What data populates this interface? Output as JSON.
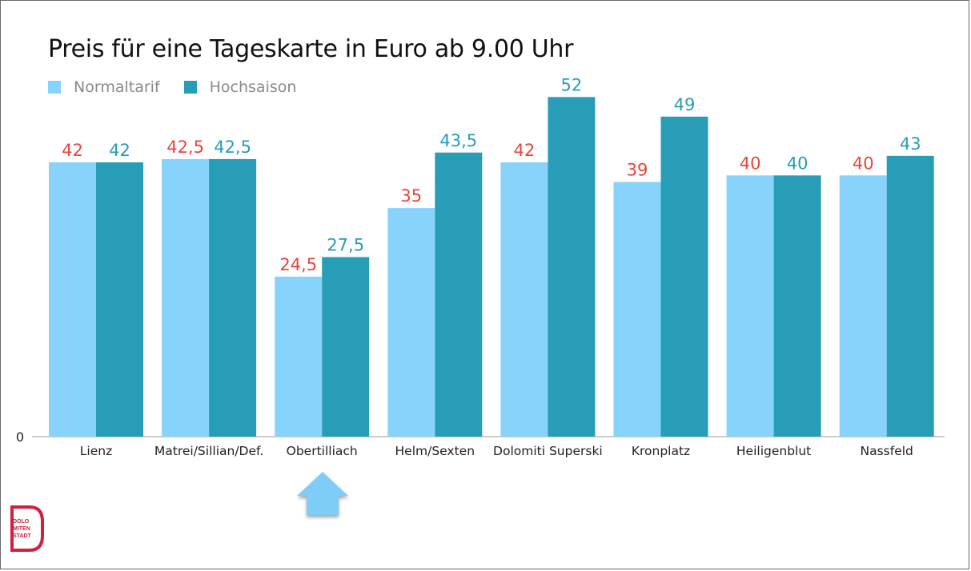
{
  "chart_data": {
    "type": "bar",
    "title": "Preis für eine Tageskarte in Euro ab 9.00 Uhr",
    "categories": [
      "Lienz",
      "Matrei/Sillian/Def.",
      "Obertilliach",
      "Helm/Sexten",
      "Dolomiti Superski",
      "Kronplatz",
      "Heiligenblut",
      "Nassfeld"
    ],
    "series": [
      {
        "name": "Normaltarif",
        "values": [
          42,
          42.5,
          24.5,
          35,
          42,
          39,
          40,
          40
        ],
        "labels": [
          "42",
          "42,5",
          "24,5",
          "35",
          "42",
          "39",
          "40",
          "40"
        ],
        "color": "#87d3fb",
        "label_color": "#e8453c"
      },
      {
        "name": "Hochsaison",
        "values": [
          42,
          42.5,
          27.5,
          43.5,
          52,
          49,
          40,
          43
        ],
        "labels": [
          "42",
          "42,5",
          "27,5",
          "43,5",
          "52",
          "49",
          "40",
          "43"
        ],
        "color": "#279db8",
        "label_color": "#279db8"
      }
    ],
    "y_tick_label": "0",
    "ylim": [
      0,
      60
    ],
    "grid": false,
    "legend_position": "top-left",
    "highlight_category": "Obertilliach"
  },
  "colors": {
    "arrow": "#7dcdf8",
    "logo": "#d0203f"
  },
  "logo": {
    "text_lines": [
      "DOLO",
      "MITEN",
      "STADT"
    ]
  },
  "icons": {
    "highlight": "up-arrow-icon",
    "logo": "speech-bubble-logo"
  }
}
